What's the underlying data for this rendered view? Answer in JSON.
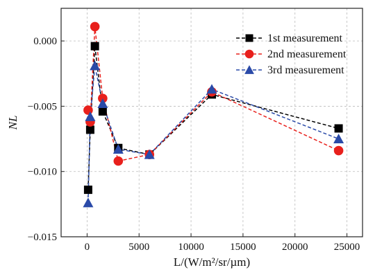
{
  "chart_data": {
    "type": "line",
    "xlabel": "L/(W/m²/sr/µm)",
    "ylabel": "NL",
    "xlim": [
      -2500,
      26500
    ],
    "ylim": [
      -0.015,
      0.0025
    ],
    "xticks": [
      0,
      5000,
      10000,
      15000,
      20000,
      25000
    ],
    "xtick_labels": [
      "0",
      "5000",
      "10000",
      "15000",
      "20000",
      "25000"
    ],
    "yticks": [
      -0.015,
      -0.01,
      -0.005,
      0.0
    ],
    "ytick_labels": [
      "−0.015",
      "−0.010",
      "−0.005",
      "0.000"
    ],
    "grid": true,
    "legend_position": "top-right",
    "series": [
      {
        "name": "1st measurement",
        "color": "#000000",
        "marker": "square",
        "x": [
          100,
          300,
          750,
          1500,
          3000,
          6000,
          12000,
          24200
        ],
        "y": [
          -0.0114,
          -0.0068,
          -0.0004,
          -0.0054,
          -0.0082,
          -0.0087,
          -0.0041,
          -0.0067
        ]
      },
      {
        "name": "2nd measurement",
        "color": "#e8201c",
        "marker": "circle",
        "x": [
          100,
          300,
          750,
          1500,
          3000,
          6000,
          12000,
          24200
        ],
        "y": [
          -0.0053,
          -0.0062,
          0.0011,
          -0.0044,
          -0.0092,
          -0.0087,
          -0.0039,
          -0.0084
        ]
      },
      {
        "name": "3rd measurement",
        "color": "#2a4aa8",
        "marker": "triangle",
        "x": [
          100,
          300,
          750,
          1500,
          3000,
          6000,
          12000,
          24200
        ],
        "y": [
          -0.0124,
          -0.0058,
          -0.0019,
          -0.0048,
          -0.0083,
          -0.0087,
          -0.0037,
          -0.0075
        ]
      }
    ]
  }
}
